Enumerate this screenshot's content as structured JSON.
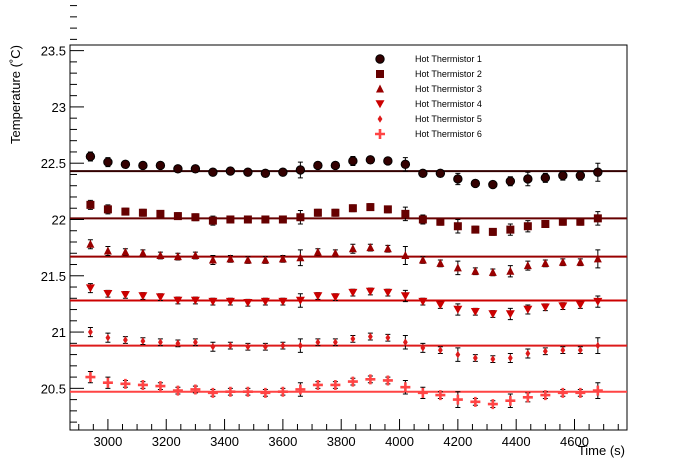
{
  "chart_data": {
    "type": "scatter",
    "title": "",
    "xlabel": "Time (s)",
    "ylabel": "Temperature (˚C)",
    "xlim": [
      2870,
      4780
    ],
    "ylim": [
      20.13,
      23.55
    ],
    "xticks": [
      {
        "value": 3000,
        "label": "3000"
      },
      {
        "value": 3200,
        "label": "3200"
      },
      {
        "value": 3400,
        "label": "3400"
      },
      {
        "value": 3600,
        "label": "3600"
      },
      {
        "value": 3800,
        "label": "3800"
      },
      {
        "value": 4000,
        "label": "4000"
      },
      {
        "value": 4200,
        "label": "4200"
      },
      {
        "value": 4400,
        "label": "4400"
      },
      {
        "value": 4600,
        "label": "4600"
      }
    ],
    "yticks": [
      {
        "value": 20.5,
        "label": "20.5"
      },
      {
        "value": 21,
        "label": "21"
      },
      {
        "value": 21.5,
        "label": "21.5"
      },
      {
        "value": 22,
        "label": "22"
      },
      {
        "value": 22.5,
        "label": "22.5"
      },
      {
        "value": 23,
        "label": "23"
      },
      {
        "value": 23.5,
        "label": "23.5"
      }
    ],
    "grid": false,
    "legend_position": "top-right",
    "x": [
      2940,
      3000,
      3060,
      3120,
      3180,
      3240,
      3300,
      3360,
      3420,
      3480,
      3540,
      3600,
      3660,
      3720,
      3780,
      3840,
      3900,
      3960,
      4020,
      4080,
      4140,
      4200,
      4260,
      4320,
      4380,
      4440,
      4500,
      4560,
      4620,
      4680
    ],
    "series": [
      {
        "name": "Hot Thermistor 1",
        "marker": "circle",
        "color": "#330000",
        "fit_line": 22.43,
        "y": [
          22.56,
          22.51,
          22.49,
          22.48,
          22.48,
          22.45,
          22.45,
          22.42,
          22.43,
          22.42,
          22.41,
          22.42,
          22.44,
          22.48,
          22.48,
          22.52,
          22.53,
          22.52,
          22.49,
          22.41,
          22.41,
          22.36,
          22.32,
          22.31,
          22.34,
          22.36,
          22.37,
          22.39,
          22.39,
          22.42
        ],
        "err": [
          0.04,
          0.04,
          0.03,
          0.03,
          0.03,
          0.03,
          0.03,
          0.03,
          0.03,
          0.03,
          0.03,
          0.03,
          0.07,
          0.03,
          0.03,
          0.04,
          0.03,
          0.03,
          0.06,
          0.03,
          0.03,
          0.05,
          0.03,
          0.03,
          0.04,
          0.06,
          0.04,
          0.04,
          0.04,
          0.08
        ]
      },
      {
        "name": "Hot Thermistor 2",
        "marker": "square",
        "color": "#660000",
        "fit_line": 22.01,
        "y": [
          22.13,
          22.09,
          22.07,
          22.06,
          22.05,
          22.03,
          22.02,
          21.99,
          22.0,
          22.0,
          22.0,
          22.0,
          22.02,
          22.06,
          22.06,
          22.1,
          22.11,
          22.09,
          22.05,
          22.0,
          21.98,
          21.94,
          21.91,
          21.89,
          21.91,
          21.94,
          21.96,
          21.98,
          21.98,
          22.01
        ],
        "err": [
          0.04,
          0.04,
          0.03,
          0.03,
          0.03,
          0.03,
          0.03,
          0.04,
          0.03,
          0.03,
          0.03,
          0.03,
          0.06,
          0.03,
          0.03,
          0.03,
          0.03,
          0.03,
          0.06,
          0.04,
          0.03,
          0.06,
          0.03,
          0.03,
          0.05,
          0.05,
          0.03,
          0.03,
          0.03,
          0.06
        ]
      },
      {
        "name": "Hot Thermistor 3",
        "marker": "triangle-up",
        "color": "#990000",
        "fit_line": 21.67,
        "y": [
          21.78,
          21.72,
          21.71,
          21.7,
          21.68,
          21.67,
          21.68,
          21.64,
          21.65,
          21.64,
          21.64,
          21.65,
          21.66,
          21.71,
          21.7,
          21.74,
          21.75,
          21.74,
          21.68,
          21.64,
          21.61,
          21.57,
          21.54,
          21.53,
          21.54,
          21.59,
          21.61,
          21.62,
          21.62,
          21.65
        ],
        "err": [
          0.04,
          0.04,
          0.03,
          0.03,
          0.03,
          0.03,
          0.03,
          0.04,
          0.03,
          0.03,
          0.03,
          0.03,
          0.07,
          0.03,
          0.03,
          0.04,
          0.03,
          0.03,
          0.08,
          0.03,
          0.03,
          0.06,
          0.03,
          0.03,
          0.05,
          0.04,
          0.03,
          0.03,
          0.03,
          0.08
        ]
      },
      {
        "name": "Hot Thermistor 4",
        "marker": "triangle-down",
        "color": "#cc0000",
        "fit_line": 21.28,
        "y": [
          21.39,
          21.34,
          21.33,
          21.32,
          21.31,
          21.28,
          21.28,
          21.27,
          21.27,
          21.26,
          21.27,
          21.27,
          21.28,
          21.32,
          21.31,
          21.35,
          21.36,
          21.35,
          21.32,
          21.27,
          21.24,
          21.2,
          21.18,
          21.16,
          21.16,
          21.2,
          21.22,
          21.23,
          21.24,
          21.27
        ],
        "err": [
          0.04,
          0.03,
          0.03,
          0.03,
          0.03,
          0.03,
          0.03,
          0.03,
          0.03,
          0.03,
          0.03,
          0.03,
          0.06,
          0.03,
          0.03,
          0.03,
          0.03,
          0.03,
          0.05,
          0.03,
          0.03,
          0.05,
          0.03,
          0.03,
          0.05,
          0.04,
          0.03,
          0.03,
          0.03,
          0.05
        ]
      },
      {
        "name": "Hot Thermistor 5",
        "marker": "diamond",
        "color": "#dd1a1a",
        "fit_line": 20.88,
        "y": [
          21.0,
          20.95,
          20.93,
          20.92,
          20.91,
          20.9,
          20.91,
          20.87,
          20.88,
          20.87,
          20.87,
          20.88,
          20.88,
          20.91,
          20.91,
          20.94,
          20.96,
          20.95,
          20.91,
          20.86,
          20.84,
          20.8,
          20.77,
          20.76,
          20.77,
          20.81,
          20.83,
          20.84,
          20.84,
          20.88
        ],
        "err": [
          0.04,
          0.04,
          0.03,
          0.03,
          0.03,
          0.03,
          0.03,
          0.04,
          0.03,
          0.03,
          0.03,
          0.03,
          0.06,
          0.03,
          0.03,
          0.03,
          0.03,
          0.03,
          0.06,
          0.04,
          0.03,
          0.06,
          0.03,
          0.03,
          0.04,
          0.04,
          0.03,
          0.03,
          0.03,
          0.07
        ]
      },
      {
        "name": "Hot Thermistor 6",
        "marker": "cross",
        "color": "#ff4444",
        "fit_line": 20.47,
        "y": [
          20.6,
          20.55,
          20.54,
          20.53,
          20.52,
          20.48,
          20.49,
          20.46,
          20.47,
          20.47,
          20.46,
          20.47,
          20.49,
          20.53,
          20.53,
          20.56,
          20.58,
          20.57,
          20.51,
          20.46,
          20.44,
          20.4,
          20.38,
          20.36,
          20.39,
          20.42,
          20.44,
          20.46,
          20.46,
          20.48
        ],
        "err": [
          0.05,
          0.05,
          0.03,
          0.03,
          0.03,
          0.03,
          0.03,
          0.03,
          0.03,
          0.03,
          0.03,
          0.03,
          0.06,
          0.03,
          0.03,
          0.03,
          0.03,
          0.03,
          0.06,
          0.05,
          0.03,
          0.07,
          0.03,
          0.03,
          0.06,
          0.04,
          0.03,
          0.03,
          0.03,
          0.07
        ]
      }
    ]
  }
}
